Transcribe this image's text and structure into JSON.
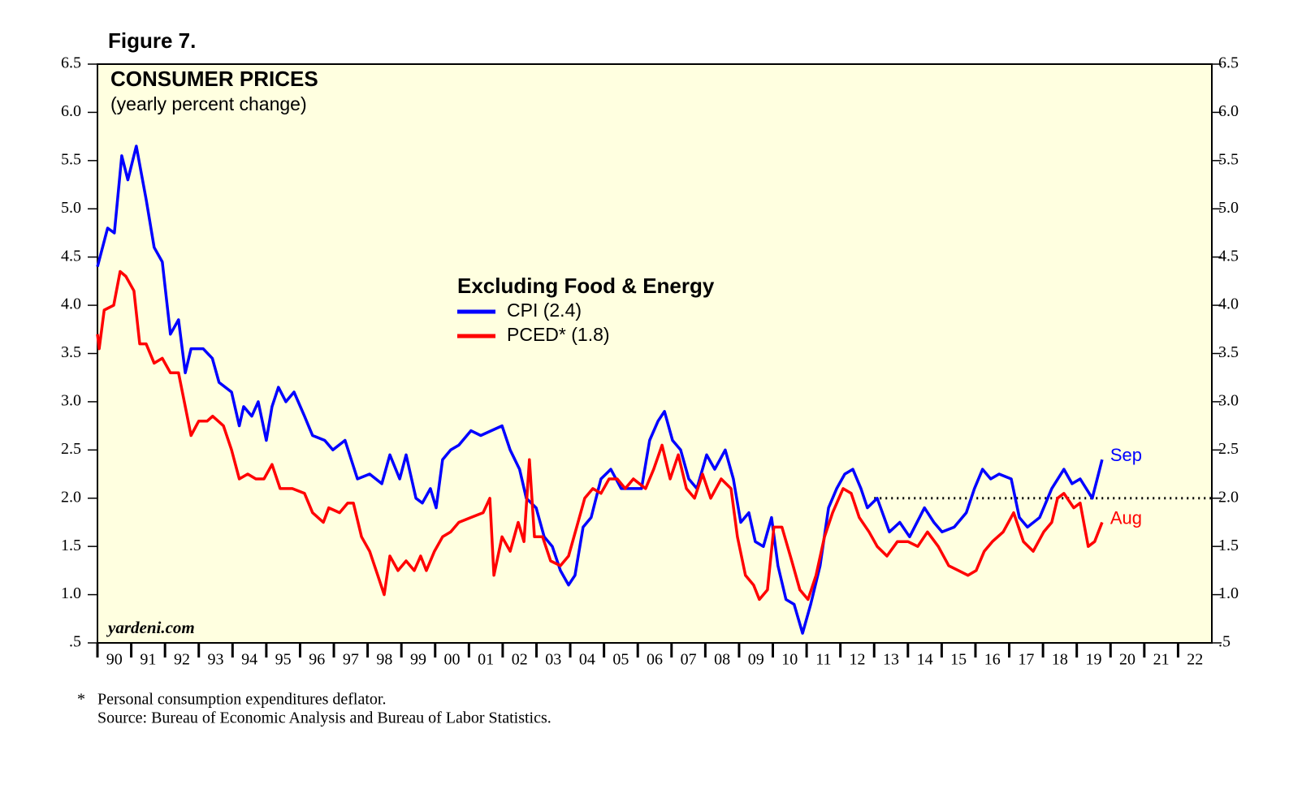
{
  "chart_data": {
    "type": "line",
    "figure_label": "Figure 7.",
    "title": "CONSUMER PRICES",
    "subtitle": "(yearly percent change)",
    "legend_title": "Excluding Food & Energy",
    "watermark": "yardeni.com",
    "footnotes": [
      "*",
      "Personal consumption expenditures deflator.",
      "Source: Bureau of Economic Analysis and Bureau of Labor Statistics."
    ],
    "background": "#ffffe0",
    "xlim": [
      1990,
      2023
    ],
    "ylim": [
      0.5,
      6.5
    ],
    "yticks": [
      {
        "value": 0.5,
        "label": ".5"
      },
      {
        "value": 1,
        "label": "1.0"
      },
      1.5,
      {
        "value": 2,
        "label": "2.0"
      },
      2.5,
      {
        "value": 3,
        "label": "3.0"
      },
      3.5,
      {
        "value": 4,
        "label": "4.0"
      },
      4.5,
      {
        "value": 5,
        "label": "5.0"
      },
      5.5,
      {
        "value": 6,
        "label": "6.0"
      },
      6.5
    ],
    "xticks": [
      {
        "value": 1990,
        "label": "90"
      },
      {
        "value": 1991,
        "label": "91"
      },
      {
        "value": 1992,
        "label": "92"
      },
      {
        "value": 1993,
        "label": "93"
      },
      {
        "value": 1994,
        "label": "94"
      },
      {
        "value": 1995,
        "label": "95"
      },
      {
        "value": 1996,
        "label": "96"
      },
      {
        "value": 1997,
        "label": "97"
      },
      {
        "value": 1998,
        "label": "98"
      },
      {
        "value": 1999,
        "label": "99"
      },
      {
        "value": 2000,
        "label": "00"
      },
      {
        "value": 2001,
        "label": "01"
      },
      {
        "value": 2002,
        "label": "02"
      },
      {
        "value": 2003,
        "label": "03"
      },
      {
        "value": 2004,
        "label": "04"
      },
      {
        "value": 2005,
        "label": "05"
      },
      {
        "value": 2006,
        "label": "06"
      },
      {
        "value": 2007,
        "label": "07"
      },
      {
        "value": 2008,
        "label": "08"
      },
      {
        "value": 2009,
        "label": "09"
      },
      {
        "value": 2010,
        "label": "10"
      },
      {
        "value": 2011,
        "label": "11"
      },
      {
        "value": 2012,
        "label": "12"
      },
      {
        "value": 2013,
        "label": "13"
      },
      {
        "value": 2014,
        "label": "14"
      },
      {
        "value": 2015,
        "label": "15"
      },
      {
        "value": 2016,
        "label": "16"
      },
      {
        "value": 2017,
        "label": "17"
      },
      {
        "value": 2018,
        "label": "18"
      },
      {
        "value": 2019,
        "label": "19"
      },
      {
        "value": 2020,
        "label": "20"
      },
      {
        "value": 2021,
        "label": "21"
      },
      {
        "value": 2022,
        "label": "22"
      }
    ],
    "reference_line": {
      "value": 2,
      "start": 2013
    },
    "series": [
      {
        "name": "CPI (2.4)",
        "color": "#0000ff",
        "end_label": "Sep",
        "x": [
          1990.0,
          1990.3,
          1990.5,
          1990.72,
          1990.9,
          1991.15,
          1991.44,
          1991.68,
          1991.92,
          1992.16,
          1992.4,
          1992.6,
          1992.77,
          1993.13,
          1993.4,
          1993.6,
          1993.97,
          1994.2,
          1994.33,
          1994.57,
          1994.76,
          1995.0,
          1995.17,
          1995.36,
          1995.58,
          1995.82,
          1996.13,
          1996.37,
          1996.73,
          1996.97,
          1997.33,
          1997.7,
          1998.06,
          1998.42,
          1998.66,
          1998.95,
          1999.14,
          1999.43,
          1999.62,
          1999.86,
          2000.03,
          2000.22,
          2000.46,
          2000.7,
          2001.06,
          2001.35,
          2001.66,
          2001.98,
          2002.22,
          2002.5,
          2002.7,
          2002.99,
          2003.23,
          2003.47,
          2003.71,
          2003.95,
          2004.14,
          2004.38,
          2004.62,
          2004.91,
          2005.2,
          2005.51,
          2005.83,
          2006.11,
          2006.35,
          2006.6,
          2006.79,
          2007.03,
          2007.27,
          2007.51,
          2007.75,
          2008.04,
          2008.28,
          2008.59,
          2008.83,
          2009.05,
          2009.29,
          2009.48,
          2009.72,
          2009.96,
          2010.15,
          2010.39,
          2010.63,
          2010.88,
          2011.12,
          2011.4,
          2011.65,
          2011.89,
          2012.13,
          2012.37,
          2012.61,
          2012.8,
          2013.09,
          2013.45,
          2013.76,
          2014.05,
          2014.49,
          2014.77,
          2015.01,
          2015.37,
          2015.73,
          2015.97,
          2016.21,
          2016.45,
          2016.7,
          2017.06,
          2017.3,
          2017.54,
          2017.9,
          2018.26,
          2018.62,
          2018.86,
          2019.1,
          2019.46,
          2019.75
        ],
        "values": [
          4.4,
          4.8,
          4.75,
          5.55,
          5.3,
          5.65,
          5.1,
          4.6,
          4.45,
          3.7,
          3.85,
          3.3,
          3.55,
          3.55,
          3.45,
          3.2,
          3.1,
          2.75,
          2.95,
          2.85,
          3.0,
          2.6,
          2.95,
          3.15,
          3.0,
          3.1,
          2.85,
          2.65,
          2.6,
          2.5,
          2.6,
          2.2,
          2.25,
          2.15,
          2.45,
          2.2,
          2.45,
          2.0,
          1.95,
          2.1,
          1.9,
          2.4,
          2.5,
          2.55,
          2.7,
          2.65,
          2.7,
          2.75,
          2.5,
          2.3,
          2.0,
          1.9,
          1.6,
          1.5,
          1.25,
          1.1,
          1.2,
          1.7,
          1.8,
          2.2,
          2.3,
          2.1,
          2.1,
          2.1,
          2.6,
          2.8,
          2.9,
          2.6,
          2.5,
          2.2,
          2.1,
          2.45,
          2.3,
          2.5,
          2.2,
          1.75,
          1.85,
          1.55,
          1.5,
          1.8,
          1.3,
          0.95,
          0.9,
          0.6,
          0.9,
          1.3,
          1.9,
          2.1,
          2.25,
          2.3,
          2.1,
          1.9,
          2.0,
          1.65,
          1.75,
          1.6,
          1.9,
          1.75,
          1.65,
          1.7,
          1.85,
          2.1,
          2.3,
          2.2,
          2.25,
          2.2,
          1.8,
          1.7,
          1.8,
          2.1,
          2.3,
          2.15,
          2.2,
          2.0,
          2.4
        ]
      },
      {
        "name": "PCED* (1.8)",
        "color": "#ff0000",
        "end_label": "Aug",
        "x": [
          1990.0,
          1990.05,
          1990.2,
          1990.48,
          1990.67,
          1990.84,
          1991.08,
          1991.25,
          1991.44,
          1991.68,
          1991.92,
          1992.16,
          1992.4,
          1992.6,
          1992.77,
          1993.0,
          1993.25,
          1993.41,
          1993.73,
          1993.97,
          1994.2,
          1994.45,
          1994.69,
          1994.93,
          1995.17,
          1995.41,
          1995.77,
          1996.13,
          1996.37,
          1996.69,
          1996.85,
          1997.17,
          1997.41,
          1997.58,
          1997.82,
          1998.06,
          1998.3,
          1998.49,
          1998.66,
          1998.9,
          1999.14,
          1999.38,
          1999.57,
          1999.74,
          1999.98,
          2000.22,
          2000.46,
          2000.7,
          2001.06,
          2001.42,
          2001.62,
          2001.74,
          2001.98,
          2002.22,
          2002.46,
          2002.63,
          2002.79,
          2002.94,
          2003.18,
          2003.42,
          2003.71,
          2003.95,
          2004.19,
          2004.43,
          2004.67,
          2004.91,
          2005.15,
          2005.39,
          2005.63,
          2005.87,
          2006.23,
          2006.47,
          2006.72,
          2006.96,
          2007.2,
          2007.44,
          2007.68,
          2007.92,
          2008.16,
          2008.47,
          2008.76,
          2008.95,
          2009.19,
          2009.43,
          2009.6,
          2009.84,
          2010.03,
          2010.27,
          2010.56,
          2010.8,
          2011.04,
          2011.28,
          2011.53,
          2011.77,
          2012.08,
          2012.32,
          2012.56,
          2012.85,
          2013.09,
          2013.38,
          2013.69,
          2014.0,
          2014.29,
          2014.58,
          2014.9,
          2015.21,
          2015.5,
          2015.78,
          2016.02,
          2016.26,
          2016.5,
          2016.82,
          2017.13,
          2017.42,
          2017.71,
          2018.02,
          2018.26,
          2018.43,
          2018.62,
          2018.91,
          2019.1,
          2019.34,
          2019.53,
          2019.75
        ],
        "values": [
          3.7,
          3.55,
          3.95,
          4.0,
          4.35,
          4.3,
          4.15,
          3.6,
          3.6,
          3.4,
          3.45,
          3.3,
          3.3,
          2.95,
          2.65,
          2.8,
          2.8,
          2.85,
          2.75,
          2.5,
          2.2,
          2.25,
          2.2,
          2.2,
          2.35,
          2.1,
          2.1,
          2.05,
          1.85,
          1.75,
          1.9,
          1.85,
          1.95,
          1.95,
          1.6,
          1.45,
          1.2,
          1.0,
          1.4,
          1.25,
          1.35,
          1.25,
          1.4,
          1.25,
          1.45,
          1.6,
          1.65,
          1.75,
          1.8,
          1.85,
          2.0,
          1.2,
          1.6,
          1.45,
          1.75,
          1.55,
          2.4,
          1.6,
          1.6,
          1.35,
          1.3,
          1.4,
          1.7,
          2.0,
          2.1,
          2.05,
          2.2,
          2.2,
          2.1,
          2.2,
          2.1,
          2.3,
          2.55,
          2.2,
          2.45,
          2.1,
          2.0,
          2.25,
          2.0,
          2.2,
          2.1,
          1.6,
          1.2,
          1.1,
          0.95,
          1.05,
          1.7,
          1.7,
          1.35,
          1.05,
          0.95,
          1.2,
          1.6,
          1.85,
          2.1,
          2.05,
          1.8,
          1.65,
          1.5,
          1.4,
          1.55,
          1.55,
          1.5,
          1.65,
          1.5,
          1.3,
          1.25,
          1.2,
          1.25,
          1.45,
          1.55,
          1.65,
          1.85,
          1.55,
          1.45,
          1.65,
          1.75,
          2.0,
          2.05,
          1.9,
          1.95,
          1.5,
          1.55,
          1.75
        ]
      }
    ]
  }
}
